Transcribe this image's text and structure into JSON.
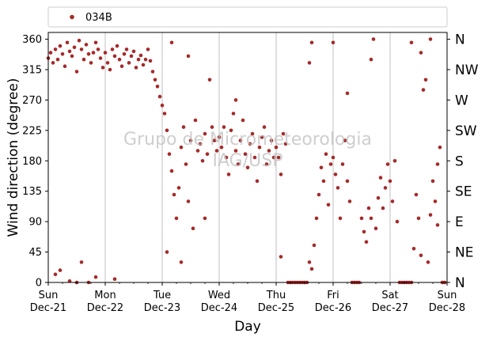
{
  "chart_data": {
    "type": "scatter",
    "xlabel": "Day",
    "ylabel": "Wind direction (degree)",
    "ylim": [
      0,
      370
    ],
    "xlim": [
      "2014-12-21",
      "2014-12-28"
    ],
    "grid": "vertical lines at day ticks",
    "legend": {
      "placement": "top, above plot",
      "entries": [
        "034B"
      ]
    },
    "watermark": [
      "Grupo de Micrometeorologia",
      "IAG/USP"
    ],
    "yticks": [
      0,
      45,
      90,
      135,
      180,
      225,
      270,
      315,
      360
    ],
    "right_labels": [
      "N",
      "NE",
      "E",
      "SE",
      "S",
      "SW",
      "W",
      "NW",
      "N"
    ],
    "xticks": [
      {
        "date": "2014-12-21",
        "day": "Sun",
        "label": "Dec-21"
      },
      {
        "date": "2014-12-22",
        "day": "Mon",
        "label": "Dec-22"
      },
      {
        "date": "2014-12-23",
        "day": "Tue",
        "label": "Dec-23"
      },
      {
        "date": "2014-12-24",
        "day": "Wed",
        "label": "Dec-24"
      },
      {
        "date": "2014-12-25",
        "day": "Thu",
        "label": "Dec-25"
      },
      {
        "date": "2014-12-26",
        "day": "Fri",
        "label": "Dec-26"
      },
      {
        "date": "2014-12-27",
        "day": "Sat",
        "label": "Dec-27"
      },
      {
        "date": "2014-12-28",
        "day": "Sun",
        "label": "Dec-28"
      }
    ],
    "series": [
      {
        "name": "034B",
        "color": "#a52a2a",
        "points": [
          [
            "2014-12-21 00:00",
            332
          ],
          [
            "2014-12-21 01:00",
            340
          ],
          [
            "2014-12-21 02:00",
            325
          ],
          [
            "2014-12-21 03:00",
            345
          ],
          [
            "2014-12-21 04:00",
            330
          ],
          [
            "2014-12-21 05:00",
            350
          ],
          [
            "2014-12-21 06:00",
            338
          ],
          [
            "2014-12-21 07:00",
            320
          ],
          [
            "2014-12-21 08:00",
            355
          ],
          [
            "2014-12-21 09:00",
            342
          ],
          [
            "2014-12-21 10:00",
            335
          ],
          [
            "2014-12-21 11:00",
            348
          ],
          [
            "2014-12-21 12:00",
            312
          ],
          [
            "2014-12-21 13:00",
            358
          ],
          [
            "2014-12-21 14:00",
            345
          ],
          [
            "2014-12-21 15:00",
            330
          ],
          [
            "2014-12-21 16:00",
            352
          ],
          [
            "2014-12-21 17:00",
            338
          ],
          [
            "2014-12-21 18:00",
            325
          ],
          [
            "2014-12-21 19:00",
            340
          ],
          [
            "2014-12-21 20:00",
            355
          ],
          [
            "2014-12-21 21:00",
            345
          ],
          [
            "2014-12-21 22:00",
            332
          ],
          [
            "2014-12-21 23:00",
            318
          ],
          [
            "2014-12-21 03:00",
            12
          ],
          [
            "2014-12-21 05:00",
            18
          ],
          [
            "2014-12-21 09:00",
            2
          ],
          [
            "2014-12-21 12:00",
            0
          ],
          [
            "2014-12-21 17:00",
            0
          ],
          [
            "2014-12-22 00:00",
            340
          ],
          [
            "2014-12-22 01:00",
            325
          ],
          [
            "2014-12-22 02:00",
            315
          ],
          [
            "2014-12-22 03:00",
            345
          ],
          [
            "2014-12-22 04:00",
            335
          ],
          [
            "2014-12-22 05:00",
            350
          ],
          [
            "2014-12-22 06:00",
            330
          ],
          [
            "2014-12-22 07:00",
            320
          ],
          [
            "2014-12-22 08:00",
            338
          ],
          [
            "2014-12-22 09:00",
            345
          ],
          [
            "2014-12-22 10:00",
            325
          ],
          [
            "2014-12-22 11:00",
            335
          ],
          [
            "2014-12-22 12:00",
            342
          ],
          [
            "2014-12-22 13:00",
            318
          ],
          [
            "2014-12-22 14:00",
            330
          ],
          [
            "2014-12-22 15:00",
            336
          ],
          [
            "2014-12-22 16:00",
            322
          ],
          [
            "2014-12-22 17:00",
            330
          ],
          [
            "2014-12-22 18:00",
            345
          ],
          [
            "2014-12-22 19:00",
            328
          ],
          [
            "2014-12-22 20:00",
            312
          ],
          [
            "2014-12-22 21:00",
            300
          ],
          [
            "2014-12-22 22:00",
            290
          ],
          [
            "2014-12-22 23:00",
            275
          ],
          [
            "2014-12-22 04:00",
            5
          ],
          [
            "2014-12-21 14:00",
            30
          ],
          [
            "2014-12-21 20:00",
            8
          ],
          [
            "2014-12-23 00:00",
            262
          ],
          [
            "2014-12-23 01:00",
            250
          ],
          [
            "2014-12-23 02:00",
            225
          ],
          [
            "2014-12-23 03:00",
            190
          ],
          [
            "2014-12-23 04:00",
            165
          ],
          [
            "2014-12-23 05:00",
            130
          ],
          [
            "2014-12-23 06:00",
            95
          ],
          [
            "2014-12-23 07:00",
            140
          ],
          [
            "2014-12-23 08:00",
            200
          ],
          [
            "2014-12-23 09:00",
            230
          ],
          [
            "2014-12-23 10:00",
            175
          ],
          [
            "2014-12-23 11:00",
            120
          ],
          [
            "2014-12-23 12:00",
            210
          ],
          [
            "2014-12-23 13:00",
            80
          ],
          [
            "2014-12-23 14:00",
            240
          ],
          [
            "2014-12-23 15:00",
            195
          ],
          [
            "2014-12-23 16:00",
            205
          ],
          [
            "2014-12-23 17:00",
            180
          ],
          [
            "2014-12-23 18:00",
            220
          ],
          [
            "2014-12-23 19:00",
            190
          ],
          [
            "2014-12-23 20:00",
            300
          ],
          [
            "2014-12-23 21:00",
            230
          ],
          [
            "2014-12-23 22:00",
            210
          ],
          [
            "2014-12-23 23:00",
            195
          ],
          [
            "2014-12-23 02:00",
            45
          ],
          [
            "2014-12-23 04:00",
            355
          ],
          [
            "2014-12-23 08:00",
            30
          ],
          [
            "2014-12-23 11:00",
            335
          ],
          [
            "2014-12-24 00:00",
            215
          ],
          [
            "2014-12-24 01:00",
            200
          ],
          [
            "2014-12-24 02:00",
            230
          ],
          [
            "2014-12-24 03:00",
            185
          ],
          [
            "2014-12-24 04:00",
            160
          ],
          [
            "2014-12-24 05:00",
            225
          ],
          [
            "2014-12-24 06:00",
            250
          ],
          [
            "2014-12-24 07:00",
            195
          ],
          [
            "2014-12-24 08:00",
            175
          ],
          [
            "2014-12-24 09:00",
            210
          ],
          [
            "2014-12-24 10:00",
            240
          ],
          [
            "2014-12-24 11:00",
            190
          ],
          [
            "2014-12-24 12:00",
            170
          ],
          [
            "2014-12-24 13:00",
            205
          ],
          [
            "2014-12-24 14:00",
            220
          ],
          [
            "2014-12-24 15:00",
            185
          ],
          [
            "2014-12-24 16:00",
            150
          ],
          [
            "2014-12-24 17:00",
            200
          ],
          [
            "2014-12-24 18:00",
            215
          ],
          [
            "2014-12-24 19:00",
            230
          ],
          [
            "2014-12-24 20:00",
            175
          ],
          [
            "2014-12-24 21:00",
            195
          ],
          [
            "2014-12-24 22:00",
            210
          ],
          [
            "2014-12-24 23:00",
            185
          ],
          [
            "2014-12-24 07:00",
            270
          ],
          [
            "2014-12-23 18:00",
            95
          ],
          [
            "2014-12-25 00:00",
            200
          ],
          [
            "2014-12-25 01:00",
            185
          ],
          [
            "2014-12-25 02:00",
            160
          ],
          [
            "2014-12-25 03:00",
            220
          ],
          [
            "2014-12-25 04:00",
            205
          ],
          [
            "2014-12-25 05:00",
            0
          ],
          [
            "2014-12-25 06:00",
            0
          ],
          [
            "2014-12-25 07:00",
            0
          ],
          [
            "2014-12-25 08:00",
            0
          ],
          [
            "2014-12-25 09:00",
            0
          ],
          [
            "2014-12-25 10:00",
            0
          ],
          [
            "2014-12-25 11:00",
            0
          ],
          [
            "2014-12-25 12:00",
            0
          ],
          [
            "2014-12-25 13:00",
            0
          ],
          [
            "2014-12-25 14:00",
            30
          ],
          [
            "2014-12-25 15:00",
            20
          ],
          [
            "2014-12-25 16:00",
            55
          ],
          [
            "2014-12-25 17:00",
            95
          ],
          [
            "2014-12-25 18:00",
            130
          ],
          [
            "2014-12-25 19:00",
            170
          ],
          [
            "2014-12-25 20:00",
            150
          ],
          [
            "2014-12-25 21:00",
            190
          ],
          [
            "2014-12-25 22:00",
            115
          ],
          [
            "2014-12-25 23:00",
            175
          ],
          [
            "2014-12-25 02:00",
            38
          ],
          [
            "2014-12-25 15:00",
            355
          ],
          [
            "2014-12-25 14:00",
            325
          ],
          [
            "2014-12-26 00:00",
            185
          ],
          [
            "2014-12-26 01:00",
            160
          ],
          [
            "2014-12-26 02:00",
            140
          ],
          [
            "2014-12-26 03:00",
            95
          ],
          [
            "2014-12-26 04:00",
            175
          ],
          [
            "2014-12-26 05:00",
            210
          ],
          [
            "2014-12-26 06:00",
            150
          ],
          [
            "2014-12-26 07:00",
            120
          ],
          [
            "2014-12-26 08:00",
            0
          ],
          [
            "2014-12-26 09:00",
            0
          ],
          [
            "2014-12-26 10:00",
            0
          ],
          [
            "2014-12-26 11:00",
            0
          ],
          [
            "2014-12-26 12:00",
            95
          ],
          [
            "2014-12-26 13:00",
            75
          ],
          [
            "2014-12-26 14:00",
            60
          ],
          [
            "2014-12-26 15:00",
            110
          ],
          [
            "2014-12-26 16:00",
            95
          ],
          [
            "2014-12-26 17:00",
            360
          ],
          [
            "2014-12-26 18:00",
            80
          ],
          [
            "2014-12-26 19:00",
            125
          ],
          [
            "2014-12-26 20:00",
            155
          ],
          [
            "2014-12-26 21:00",
            110
          ],
          [
            "2014-12-26 22:00",
            140
          ],
          [
            "2014-12-26 23:00",
            175
          ],
          [
            "2014-12-26 00:00",
            355
          ],
          [
            "2014-12-26 06:00",
            280
          ],
          [
            "2014-12-26 16:00",
            330
          ],
          [
            "2014-12-27 00:00",
            150
          ],
          [
            "2014-12-27 01:00",
            120
          ],
          [
            "2014-12-27 02:00",
            180
          ],
          [
            "2014-12-27 03:00",
            90
          ],
          [
            "2014-12-27 04:00",
            0
          ],
          [
            "2014-12-27 05:00",
            0
          ],
          [
            "2014-12-27 06:00",
            0
          ],
          [
            "2014-12-27 07:00",
            0
          ],
          [
            "2014-12-27 08:00",
            0
          ],
          [
            "2014-12-27 09:00",
            0
          ],
          [
            "2014-12-27 10:00",
            50
          ],
          [
            "2014-12-27 11:00",
            130
          ],
          [
            "2014-12-27 12:00",
            95
          ],
          [
            "2014-12-27 13:00",
            40
          ],
          [
            "2014-12-27 14:00",
            285
          ],
          [
            "2014-12-27 15:00",
            300
          ],
          [
            "2014-12-27 16:00",
            30
          ],
          [
            "2014-12-27 17:00",
            100
          ],
          [
            "2014-12-27 18:00",
            150
          ],
          [
            "2014-12-27 19:00",
            120
          ],
          [
            "2014-12-27 20:00",
            85
          ],
          [
            "2014-12-27 21:00",
            200
          ],
          [
            "2014-12-27 22:00",
            0
          ],
          [
            "2014-12-27 23:00",
            0
          ],
          [
            "2014-12-27 09:00",
            355
          ],
          [
            "2014-12-27 13:00",
            340
          ],
          [
            "2014-12-27 17:00",
            360
          ],
          [
            "2014-12-27 20:00",
            175
          ]
        ]
      }
    ]
  }
}
